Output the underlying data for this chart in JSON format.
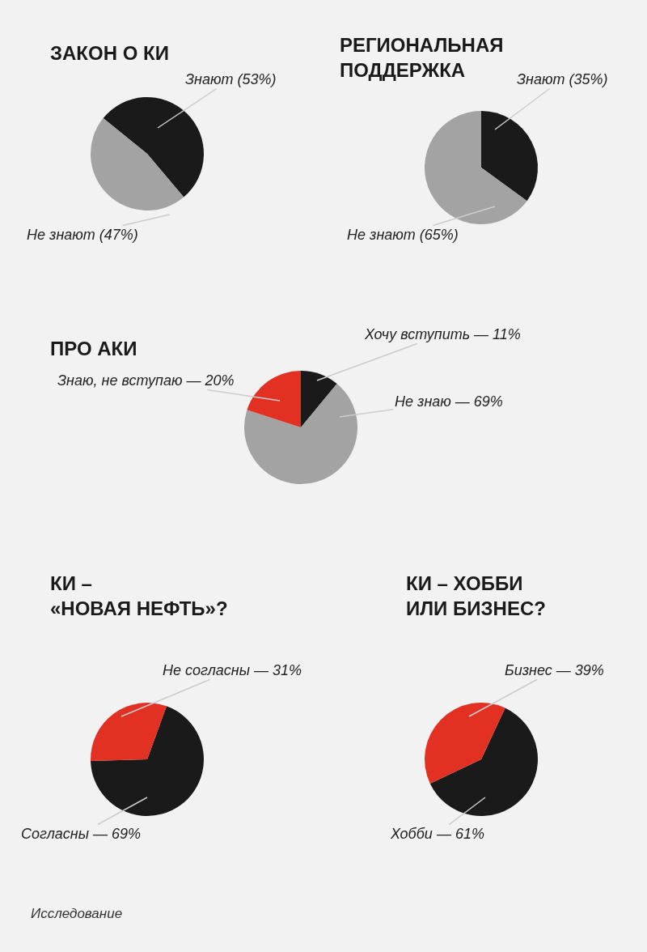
{
  "chart_data": [
    {
      "type": "pie",
      "title": "ЗАКОН О КИ",
      "categories": [
        "Знают (53%)",
        "Не знают (47%)"
      ],
      "values": [
        53,
        47
      ],
      "colors": [
        "#1a1a1a",
        "#a3a3a3"
      ]
    },
    {
      "type": "pie",
      "title": "РЕГИОНАЛЬНАЯ\nПОДДЕРЖКА",
      "categories": [
        "Знают (35%)",
        "Не знают (65%)"
      ],
      "values": [
        35,
        65
      ],
      "colors": [
        "#1a1a1a",
        "#a3a3a3"
      ]
    },
    {
      "type": "pie",
      "title": "ПРО АКИ",
      "categories": [
        "Хочу вступить — 11%",
        "Не знаю — 69%",
        "Знаю, не вступаю — 20%"
      ],
      "values": [
        11,
        69,
        20
      ],
      "colors": [
        "#1a1a1a",
        "#a3a3a3",
        "#e23123"
      ]
    },
    {
      "type": "pie",
      "title": "КИ –\n«НОВАЯ НЕФТЬ»?",
      "categories": [
        "Согласны — 69%",
        "Не согласны — 31%"
      ],
      "values": [
        69,
        31
      ],
      "colors": [
        "#1a1a1a",
        "#e23123"
      ]
    },
    {
      "type": "pie",
      "title": "КИ – ХОББИ\nИЛИ БИЗНЕС?",
      "categories": [
        "Хобби — 61%",
        "Бизнес — 39%"
      ],
      "values": [
        61,
        39
      ],
      "colors": [
        "#1a1a1a",
        "#e23123"
      ],
      "annotations": [
        "Исследование"
      ]
    }
  ]
}
